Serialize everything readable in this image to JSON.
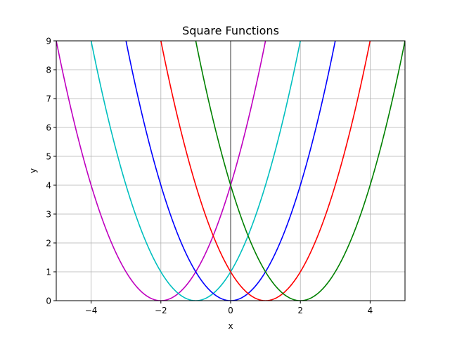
{
  "chart_data": {
    "type": "line",
    "title": "Square Functions",
    "xlabel": "x",
    "ylabel": "y",
    "xlim": [
      -5,
      5
    ],
    "ylim": [
      0,
      9
    ],
    "x_ticks": [
      -4,
      -2,
      0,
      2,
      4
    ],
    "x_tick_labels": [
      "−4",
      "−2",
      "0",
      "2",
      "4"
    ],
    "y_ticks": [
      0,
      1,
      2,
      3,
      4,
      5,
      6,
      7,
      8,
      9
    ],
    "y_tick_labels": [
      "0",
      "1",
      "2",
      "3",
      "4",
      "5",
      "6",
      "7",
      "8",
      "9"
    ],
    "grid": true,
    "vertical_line_x": 0,
    "series": [
      {
        "color": "#bf00bf",
        "vertex_x": -2
      },
      {
        "color": "#00bfbf",
        "vertex_x": -1
      },
      {
        "color": "#0000ff",
        "vertex_x": 0
      },
      {
        "color": "#ff0000",
        "vertex_x": 1
      },
      {
        "color": "#008000",
        "vertex_x": 2
      }
    ]
  }
}
